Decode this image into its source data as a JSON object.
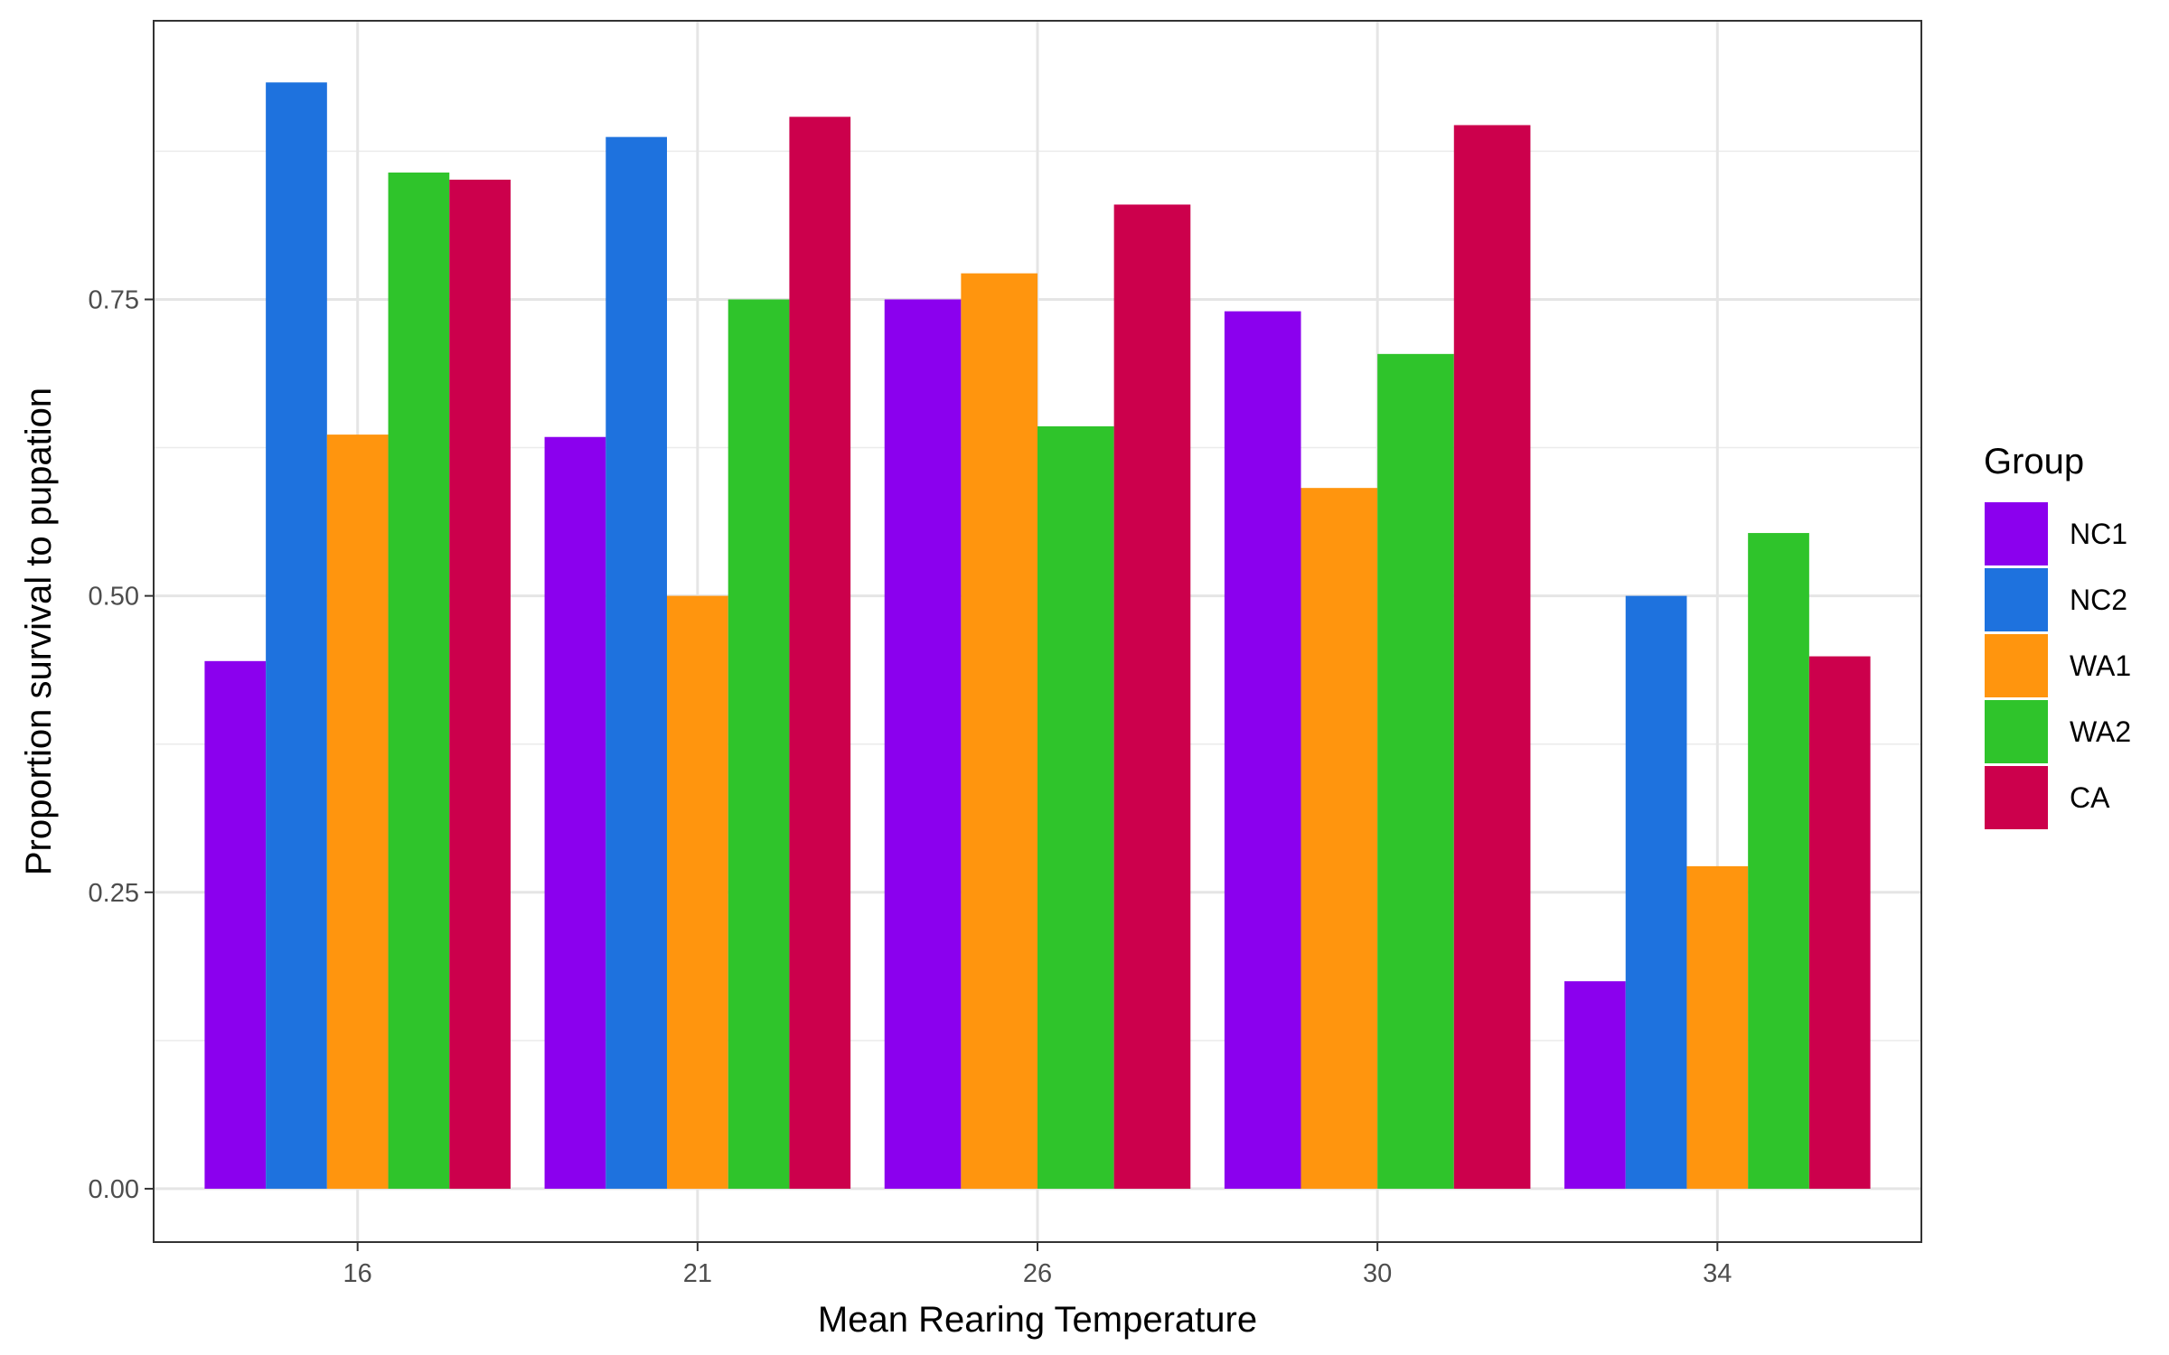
{
  "chart_data": {
    "type": "bar",
    "xlabel": "Mean Rearing Temperature",
    "ylabel": "Proportion survival to pupation",
    "categories": [
      "16",
      "21",
      "26",
      "30",
      "34"
    ],
    "ylim": [
      -0.045,
      0.985
    ],
    "yticks": [
      0.0,
      0.25,
      0.5,
      0.75
    ],
    "ytick_labels": [
      "0.00",
      "0.25",
      "0.50",
      "0.75"
    ],
    "grid": true,
    "legend": {
      "title": "Group",
      "position": "right"
    },
    "series": [
      {
        "name": "NC1",
        "color": "#8B00EE",
        "values": [
          0.445,
          0.634,
          0.75,
          0.74,
          0.175
        ]
      },
      {
        "name": "NC2",
        "color": "#1E72DE",
        "values": [
          0.933,
          0.887,
          null,
          null,
          0.5
        ]
      },
      {
        "name": "WA1",
        "color": "#FF950E",
        "values": [
          0.636,
          0.5,
          0.772,
          0.591,
          0.272
        ]
      },
      {
        "name": "WA2",
        "color": "#2FC42B",
        "values": [
          0.857,
          0.75,
          0.643,
          0.704,
          0.553
        ]
      },
      {
        "name": "CA",
        "color": "#CC004C",
        "values": [
          0.851,
          0.904,
          0.83,
          0.897,
          0.449
        ]
      }
    ]
  }
}
